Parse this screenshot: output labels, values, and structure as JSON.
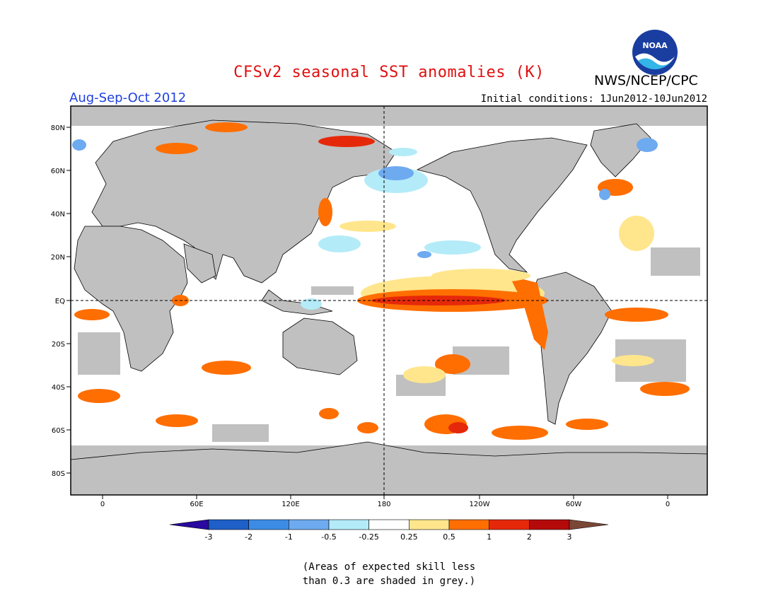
{
  "header": {
    "title": "CFSv2 seasonal SST anomalies (K)",
    "agency": "NWS/NCEP/CPC",
    "logo_text": "NOAA",
    "season": "Aug-Sep-Oct 2012",
    "initial_conditions": "Initial conditions: 1Jun2012-10Jun2012"
  },
  "map": {
    "lat_labels": [
      "80N",
      "60N",
      "40N",
      "20N",
      "EQ",
      "20S",
      "40S",
      "60S",
      "80S"
    ],
    "lon_labels": [
      "0",
      "60E",
      "120E",
      "180",
      "120W",
      "60W",
      "0"
    ]
  },
  "colorbar": {
    "labels": [
      "-3",
      "-2",
      "-1",
      "-0.5",
      "-0.25",
      "0.25",
      "0.5",
      "1",
      "2",
      "3"
    ],
    "colors": [
      "#2a0aa0",
      "#1e5fc8",
      "#3c8ce6",
      "#6eaaf0",
      "#b4ebf8",
      "#ffffff",
      "#ffe68c",
      "#ff6e00",
      "#e6280a",
      "#b40a0a",
      "#7a4636"
    ]
  },
  "note": {
    "line1": "(Areas of expected skill less",
    "line2": "than 0.3 are shaded in grey.)"
  }
}
